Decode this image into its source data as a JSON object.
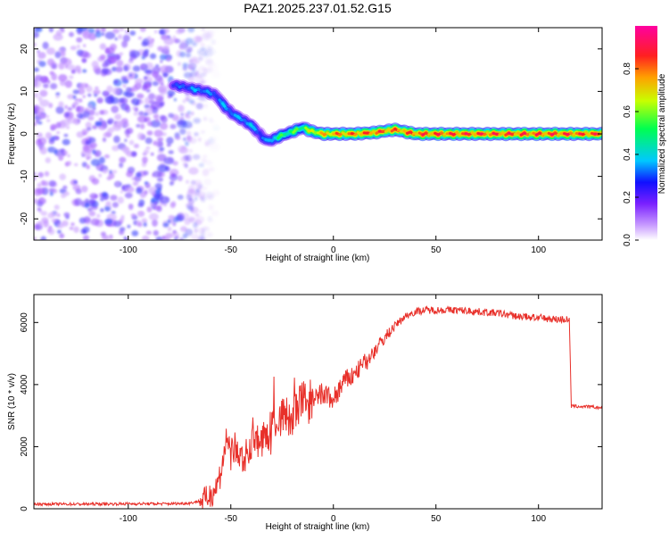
{
  "title": "PAZ1.2025.237.01.52.G15",
  "chart_data": [
    {
      "type": "heatmap",
      "name": "spectrogram",
      "xlabel": "Height of straight line (km)",
      "ylabel": "Frequency (Hz)",
      "xlim": [
        -146,
        131
      ],
      "ylim": [
        -25,
        25
      ],
      "xticks": [
        -100,
        -50,
        0,
        50,
        100
      ],
      "yticks": [
        20,
        10,
        0,
        -10,
        -20
      ],
      "colorbar": {
        "label": "Normalized spectral amplitude",
        "range": [
          0,
          1
        ],
        "ticks": [
          0.0,
          0.2,
          0.4,
          0.6,
          0.8
        ],
        "tick_labels": [
          "0.0",
          "0.2",
          "0.4",
          "0.6",
          "0.8"
        ],
        "colormap": [
          "#ffffff",
          "#9b4dff",
          "#2a2aff",
          "#00d0ff",
          "#00ff60",
          "#c8ff00",
          "#ffb000",
          "#ff2020",
          "#ff00a0"
        ]
      },
      "noise_region": {
        "x": [
          -146,
          -65
        ],
        "amplitude": 0.25
      },
      "ridge": {
        "x": [
          -78,
          -72,
          -68,
          -62,
          -57,
          -54,
          -50,
          -45,
          -40,
          -36,
          -33,
          -30,
          -26,
          -20,
          -15,
          -10,
          -5,
          0,
          10,
          20,
          30,
          40,
          50,
          60,
          70,
          80,
          90,
          100,
          110,
          120,
          131
        ],
        "frequency": [
          11.5,
          11,
          10.5,
          10,
          9,
          7,
          5,
          3.5,
          2,
          0,
          -1.5,
          -1.5,
          -0.5,
          0.5,
          1.5,
          0.5,
          0,
          0,
          0,
          0.3,
          1,
          0,
          0,
          0,
          0,
          0,
          0,
          0,
          0,
          0,
          0
        ],
        "amplitude": [
          0.3,
          0.32,
          0.38,
          0.35,
          0.33,
          0.38,
          0.36,
          0.38,
          0.4,
          0.32,
          0.35,
          0.45,
          0.55,
          0.58,
          0.6,
          0.75,
          0.8,
          0.85,
          0.88,
          0.92,
          0.88,
          0.92,
          0.93,
          0.93,
          0.94,
          0.94,
          0.94,
          0.93,
          0.94,
          0.93,
          0.93
        ]
      }
    },
    {
      "type": "line",
      "name": "snr",
      "xlabel": "Height of straight line (km)",
      "ylabel": "SNR (10 * v/v)",
      "xlim": [
        -146,
        131
      ],
      "ylim": [
        0,
        6900
      ],
      "xticks": [
        -100,
        -50,
        0,
        50,
        100
      ],
      "yticks": [
        0,
        2000,
        4000,
        6000
      ],
      "color": "#e8302a",
      "series": [
        {
          "name": "SNR",
          "x": [
            -146,
            -120,
            -100,
            -80,
            -70,
            -62,
            -57,
            -54,
            -52,
            -50,
            -48,
            -45,
            -42,
            -38,
            -35,
            -30,
            -25,
            -20,
            -15,
            -10,
            -5,
            0,
            5,
            10,
            15,
            20,
            25,
            30,
            35,
            40,
            45,
            50,
            60,
            70,
            80,
            90,
            100,
            110,
            115,
            116,
            118,
            125,
            131
          ],
          "y": [
            150,
            150,
            160,
            160,
            180,
            300,
            700,
            1400,
            2200,
            1700,
            2000,
            1500,
            1900,
            2300,
            2100,
            2600,
            3000,
            2900,
            3500,
            3400,
            3700,
            3500,
            4100,
            4300,
            4700,
            5100,
            5500,
            5900,
            6200,
            6350,
            6400,
            6400,
            6400,
            6350,
            6300,
            6200,
            6150,
            6100,
            6100,
            3300,
            3300,
            3280,
            3250
          ]
        }
      ]
    }
  ]
}
